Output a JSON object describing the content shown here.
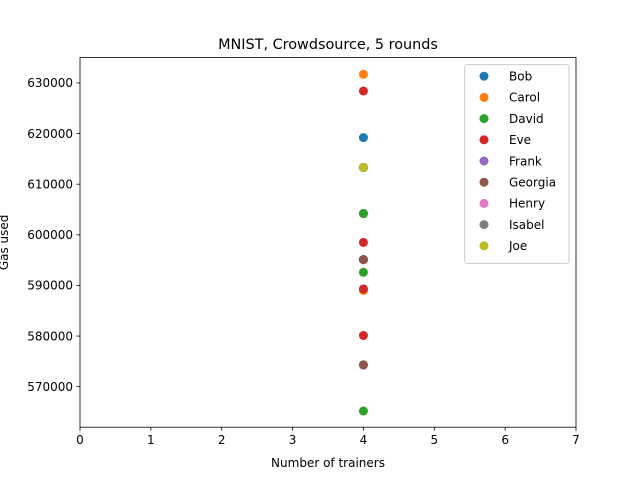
{
  "chart_data": {
    "type": "scatter",
    "title": "MNIST, Crowdsource, 5 rounds",
    "xlabel": "Number of trainers",
    "ylabel": "Gas used",
    "xlim": [
      0,
      7
    ],
    "ylim": [
      562000,
      635000
    ],
    "xticks": [
      0,
      1,
      2,
      3,
      4,
      5,
      6,
      7
    ],
    "yticks": [
      570000,
      580000,
      590000,
      600000,
      610000,
      620000,
      630000
    ],
    "ytick_labels": [
      "570000",
      "580000",
      "590000",
      "600000",
      "610000",
      "620000",
      "630000"
    ],
    "grid": false,
    "legend_position": "top-right",
    "series": [
      {
        "name": "Bob",
        "color": "#1f77b4",
        "points": [
          [
            4,
            619200
          ],
          [
            4,
            613300
          ],
          [
            4,
            604200
          ],
          [
            4,
            595100
          ],
          [
            4,
            589300
          ]
        ]
      },
      {
        "name": "Carol",
        "color": "#ff7f0e",
        "points": [
          [
            4,
            631700
          ],
          [
            4,
            613300
          ],
          [
            4,
            604200
          ],
          [
            4,
            595100
          ],
          [
            4,
            589000
          ]
        ]
      },
      {
        "name": "David",
        "color": "#2ca02c",
        "points": [
          [
            4,
            613300
          ],
          [
            4,
            604200
          ],
          [
            4,
            595100
          ],
          [
            4,
            592600
          ],
          [
            4,
            565200
          ]
        ]
      },
      {
        "name": "Eve",
        "color": "#d62728",
        "points": [
          [
            4,
            628400
          ],
          [
            4,
            613300
          ],
          [
            4,
            598500
          ],
          [
            4,
            595100
          ],
          [
            4,
            589300
          ],
          [
            4,
            580100
          ],
          [
            4,
            574300
          ]
        ]
      },
      {
        "name": "Frank",
        "color": "#9467bd",
        "points": [
          [
            4,
            613300
          ],
          [
            4,
            595100
          ],
          [
            4,
            574300
          ]
        ]
      },
      {
        "name": "Georgia",
        "color": "#8c564b",
        "points": [
          [
            4,
            613300
          ],
          [
            4,
            595100
          ],
          [
            4,
            574300
          ]
        ]
      },
      {
        "name": "Henry",
        "color": "#e377c2",
        "points": [
          [
            4,
            613300
          ]
        ]
      },
      {
        "name": "Isabel",
        "color": "#7f7f7f",
        "points": [
          [
            4,
            613300
          ]
        ]
      },
      {
        "name": "Joe",
        "color": "#bcbd22",
        "points": [
          [
            4,
            613300
          ]
        ]
      }
    ]
  }
}
